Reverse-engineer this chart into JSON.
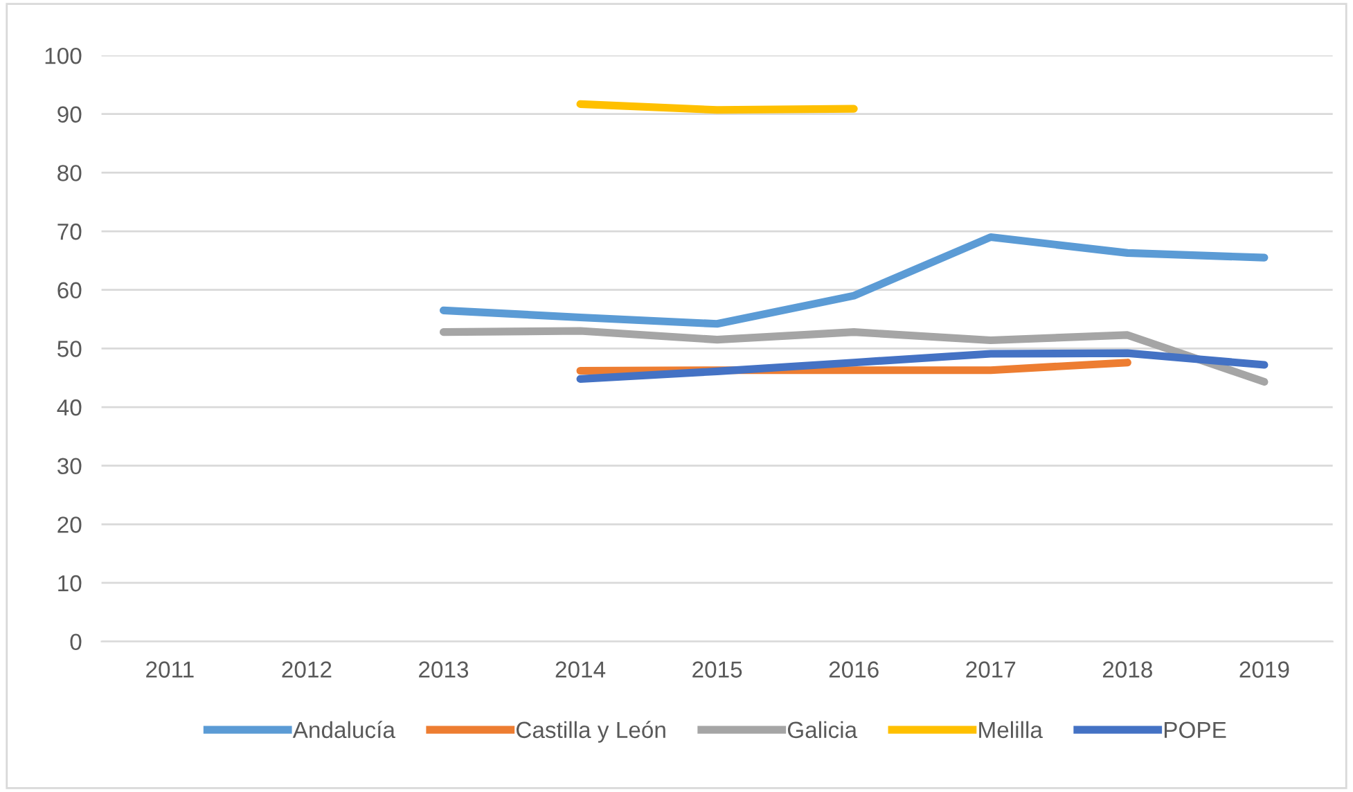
{
  "chart_data": {
    "type": "line",
    "categories": [
      "2011",
      "2012",
      "2013",
      "2014",
      "2015",
      "2016",
      "2017",
      "2018",
      "2019"
    ],
    "series": [
      {
        "name": "Andalucía",
        "color": "#5b9bd5",
        "values": [
          null,
          null,
          56.5,
          55.3,
          54.2,
          59,
          69,
          66.3,
          65.5
        ]
      },
      {
        "name": "Castilla y León",
        "color": "#ed7d31",
        "values": [
          null,
          null,
          null,
          46.2,
          46.3,
          46.3,
          46.3,
          47.6,
          null
        ]
      },
      {
        "name": "Galicia",
        "color": "#a5a5a5",
        "values": [
          null,
          null,
          52.8,
          53,
          51.5,
          52.8,
          51.4,
          52.3,
          44.3
        ]
      },
      {
        "name": "Melilla",
        "color": "#ffc000",
        "values": [
          null,
          null,
          null,
          91.7,
          90.7,
          90.9,
          null,
          null,
          null
        ]
      },
      {
        "name": "POPE",
        "color": "#4472c4",
        "values": [
          null,
          null,
          null,
          44.8,
          46.1,
          47.6,
          49.1,
          49.2,
          47.2
        ]
      }
    ],
    "ylim": [
      0,
      100
    ],
    "yticks": [
      0,
      10,
      20,
      30,
      40,
      50,
      60,
      70,
      80,
      90,
      100
    ],
    "grid": "y",
    "legend": "bottom",
    "marker": "none",
    "line_style": "solid"
  }
}
